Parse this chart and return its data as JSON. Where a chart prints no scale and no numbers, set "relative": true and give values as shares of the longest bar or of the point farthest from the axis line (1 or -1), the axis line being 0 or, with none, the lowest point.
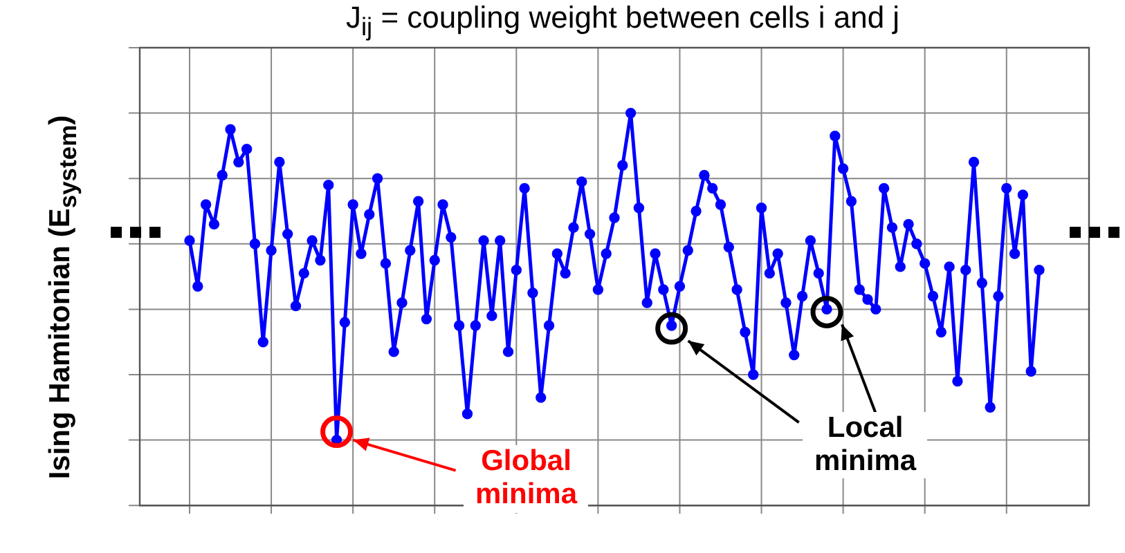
{
  "chart_data": {
    "type": "line",
    "title": "J$_{ij}$ = coupling weight between cells i and j",
    "ylabel": "Ising Hamitonian (E$_{system}$)",
    "relative": true,
    "color": "#0000ff",
    "marker": "circle",
    "grid": true,
    "legend": false,
    "categories": [
      null,
      null,
      null,
      null,
      null,
      null,
      null,
      null,
      null,
      null,
      null,
      null,
      null,
      null,
      null,
      null,
      null,
      null,
      null,
      null,
      null,
      null,
      null,
      null,
      null,
      null,
      null,
      null,
      null,
      null,
      null,
      null,
      null,
      null,
      null,
      null,
      null,
      null,
      null,
      null,
      null,
      null,
      null,
      null,
      null,
      null,
      null,
      null,
      null,
      null,
      null,
      null,
      null,
      null,
      null,
      null,
      null,
      null,
      null,
      null,
      null,
      null,
      null,
      null,
      null,
      null,
      null,
      null,
      null,
      null,
      null,
      null,
      null,
      null,
      null,
      null,
      null,
      null,
      null,
      null,
      null,
      null,
      null,
      null,
      null,
      null,
      null,
      null,
      null,
      null,
      null,
      null,
      null,
      null,
      null,
      null,
      null,
      null,
      null,
      null,
      null,
      null,
      null,
      null,
      null
    ],
    "values": [
      0.61,
      0.47,
      0.72,
      0.66,
      0.81,
      0.95,
      0.85,
      0.89,
      0.6,
      0.3,
      0.58,
      0.85,
      0.63,
      0.41,
      0.51,
      0.61,
      0.55,
      0.78,
      0,
      0.36,
      0.72,
      0.57,
      0.69,
      0.8,
      0.54,
      0.27,
      0.42,
      0.58,
      0.73,
      0.37,
      0.55,
      0.72,
      0.62,
      0.35,
      0.08,
      0.35,
      0.61,
      0.38,
      0.61,
      0.27,
      0.52,
      0.77,
      0.45,
      0.13,
      0.35,
      0.57,
      0.51,
      0.65,
      0.79,
      0.63,
      0.46,
      0.57,
      0.68,
      0.84,
      1,
      0.71,
      0.42,
      0.57,
      0.46,
      0.35,
      0.47,
      0.58,
      0.7,
      0.81,
      0.77,
      0.72,
      0.59,
      0.46,
      0.33,
      0.2,
      0.71,
      0.51,
      0.57,
      0.42,
      0.26,
      0.44,
      0.61,
      0.51,
      0.4,
      0.93,
      0.83,
      0.73,
      0.46,
      0.43,
      0.4,
      0.77,
      0.65,
      0.53,
      0.66,
      0.6,
      0.54,
      0.44,
      0.33,
      0.53,
      0.18,
      0.52,
      0.85,
      0.48,
      0.1,
      0.44,
      0.77,
      0.57,
      0.75,
      0.21,
      0.52
    ],
    "annotations": [
      "Global minima",
      "Local minima"
    ]
  }
}
